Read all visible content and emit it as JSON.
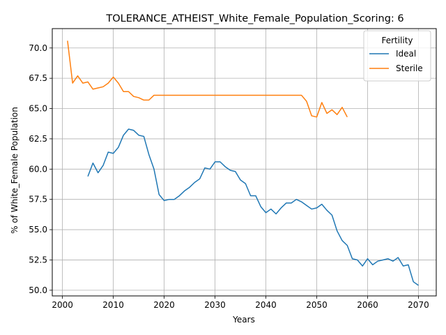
{
  "chart_data": {
    "type": "line",
    "title": "TOLERANCE_ATHEIST_White_Female_Population_Scoring: 6",
    "xlabel": "Years",
    "ylabel": "% of White_Female Population",
    "xlim": [
      1998,
      2073.5
    ],
    "ylim": [
      49.53,
      71.6
    ],
    "xticks": [
      "2000",
      "2010",
      "2020",
      "2030",
      "2040",
      "2050",
      "2060",
      "2070"
    ],
    "yticks": [
      "50.0",
      "52.5",
      "55.0",
      "57.5",
      "60.0",
      "62.5",
      "65.0",
      "67.5",
      "70.0"
    ],
    "grid": true,
    "legend": {
      "title": "Fertility",
      "position": "top-right"
    },
    "series": [
      {
        "name": "Ideal",
        "color": "#1f77b4",
        "x": [
          2005,
          2006,
          2007,
          2008,
          2009,
          2010,
          2011,
          2012,
          2013,
          2014,
          2015,
          2016,
          2017,
          2018,
          2019,
          2020,
          2021,
          2022,
          2023,
          2024,
          2025,
          2026,
          2027,
          2028,
          2029,
          2030,
          2031,
          2032,
          2033,
          2034,
          2035,
          2036,
          2037,
          2038,
          2039,
          2040,
          2041,
          2042,
          2043,
          2044,
          2045,
          2046,
          2047,
          2048,
          2049,
          2050,
          2051,
          2052,
          2053,
          2054,
          2055,
          2056,
          2057,
          2058,
          2059,
          2060,
          2061,
          2062,
          2063,
          2064,
          2065,
          2066,
          2067,
          2068,
          2069,
          2070
        ],
        "y": [
          59.4,
          60.5,
          59.7,
          60.3,
          61.4,
          61.3,
          61.8,
          62.8,
          63.3,
          63.2,
          62.8,
          62.7,
          61.2,
          60.0,
          57.9,
          57.4,
          57.5,
          57.5,
          57.8,
          58.2,
          58.5,
          58.9,
          59.2,
          60.1,
          60.0,
          60.6,
          60.6,
          60.2,
          59.9,
          59.8,
          59.1,
          58.8,
          57.8,
          57.8,
          56.9,
          56.4,
          56.7,
          56.3,
          56.8,
          57.2,
          57.2,
          57.5,
          57.3,
          57.0,
          56.7,
          56.8,
          57.1,
          56.6,
          56.2,
          54.9,
          54.1,
          53.7,
          52.6,
          52.5,
          52.0,
          52.6,
          52.1,
          52.4,
          52.5,
          52.6,
          52.4,
          52.7,
          52.0,
          52.1,
          50.7,
          50.4
        ]
      },
      {
        "name": "Sterile",
        "color": "#ff7f0e",
        "x": [
          2001,
          2002,
          2003,
          2004,
          2005,
          2006,
          2007,
          2008,
          2009,
          2010,
          2011,
          2012,
          2013,
          2014,
          2015,
          2016,
          2017,
          2018,
          2019,
          2020,
          2021,
          2022,
          2023,
          2024,
          2025,
          2026,
          2027,
          2028,
          2029,
          2030,
          2031,
          2032,
          2033,
          2034,
          2035,
          2036,
          2037,
          2038,
          2039,
          2040,
          2041,
          2042,
          2043,
          2044,
          2045,
          2046,
          2047,
          2048,
          2049,
          2050,
          2051,
          2052,
          2053,
          2054,
          2055,
          2056
        ],
        "y": [
          70.6,
          67.1,
          67.7,
          67.1,
          67.2,
          66.6,
          66.7,
          66.8,
          67.1,
          67.6,
          67.1,
          66.4,
          66.4,
          66.0,
          65.9,
          65.7,
          65.7,
          66.1,
          66.1,
          66.1,
          66.1,
          66.1,
          66.1,
          66.1,
          66.1,
          66.1,
          66.1,
          66.1,
          66.1,
          66.1,
          66.1,
          66.1,
          66.1,
          66.1,
          66.1,
          66.1,
          66.1,
          66.1,
          66.1,
          66.1,
          66.1,
          66.1,
          66.1,
          66.1,
          66.1,
          66.1,
          66.1,
          65.6,
          64.4,
          64.3,
          65.5,
          64.6,
          64.9,
          64.5,
          65.1,
          64.3
        ]
      }
    ]
  }
}
